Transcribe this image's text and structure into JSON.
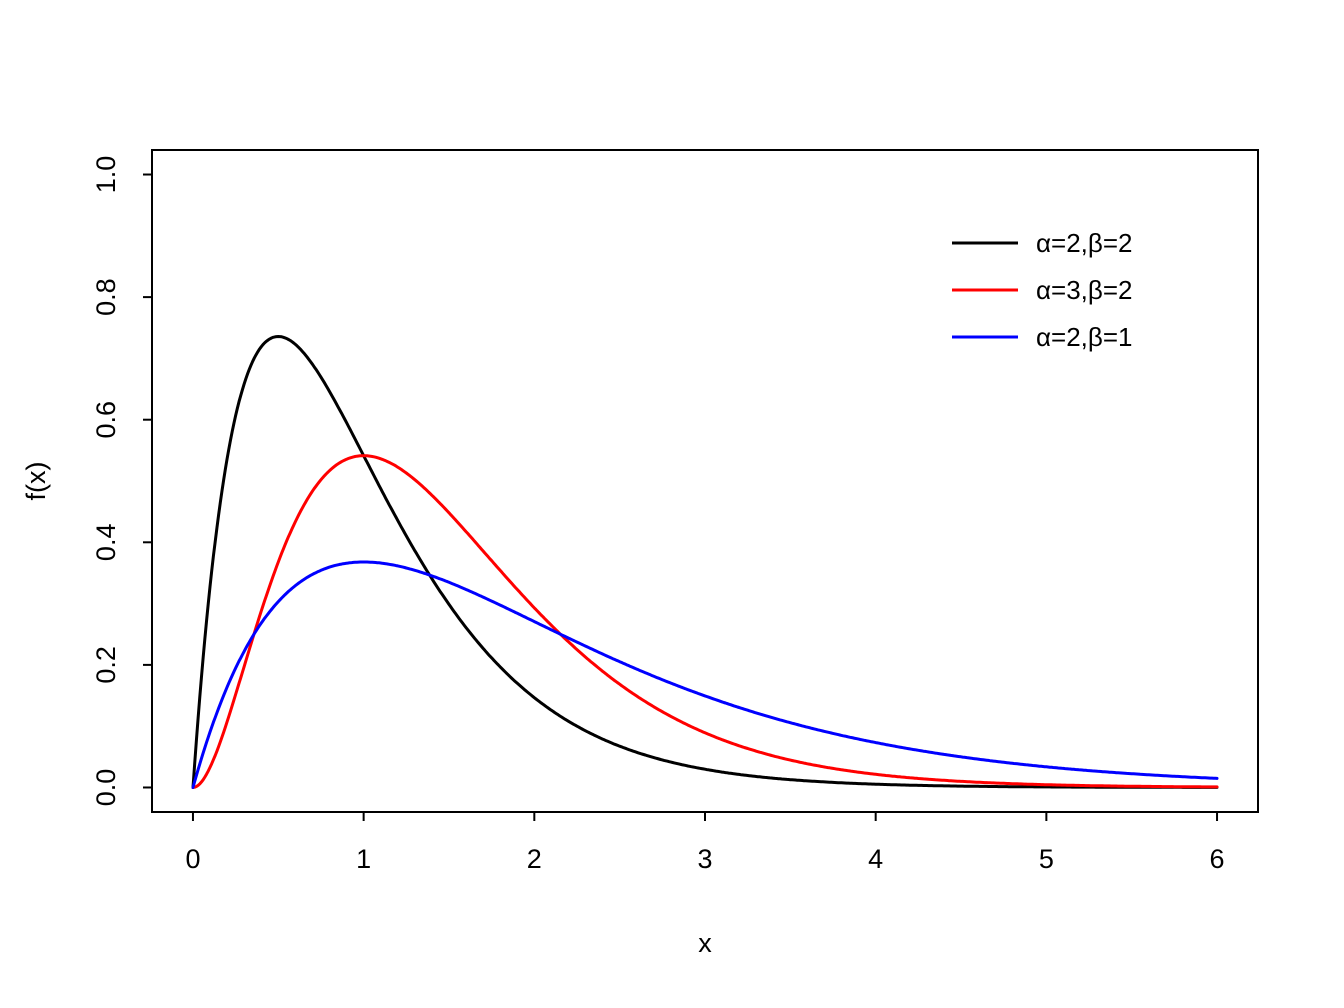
{
  "chart_data": {
    "type": "line",
    "title": "",
    "xlabel": "x",
    "ylabel": "f(x)",
    "xlim": [
      0,
      6
    ],
    "ylim": [
      0.0,
      1.0
    ],
    "grid": false,
    "background_color": "#FFFFFF",
    "box_color": "#000000",
    "x_ticks": {
      "values": [
        0,
        1,
        2,
        3,
        4,
        5,
        6
      ],
      "labels": [
        "0",
        "1",
        "2",
        "3",
        "4",
        "5",
        "6"
      ]
    },
    "y_ticks": {
      "values": [
        0.0,
        0.2,
        0.4,
        0.6,
        0.8,
        1.0
      ],
      "labels": [
        "0.0",
        "0.2",
        "0.4",
        "0.6",
        "0.8",
        "1.0"
      ]
    },
    "sample_x": [
      0,
      0.5,
      1,
      1.5,
      2,
      2.5,
      3,
      3.5,
      4,
      4.5,
      5,
      5.5,
      6
    ],
    "series": [
      {
        "name": "α=2,β=2",
        "color": "#000000",
        "curve": "gamma_pdf",
        "shape_alpha": 2,
        "rate_beta": 2,
        "peak_point": {
          "x": 0.5,
          "y": 0.7358
        },
        "sample_y": [
          0,
          0.7358,
          0.5413,
          0.2987,
          0.1465,
          0.0674,
          0.0297,
          0.0128,
          0.0054,
          0.0022,
          0.0009,
          0.0004,
          0.0001
        ]
      },
      {
        "name": "α=3,β=2",
        "color": "#FF0000",
        "curve": "gamma_pdf",
        "shape_alpha": 3,
        "rate_beta": 2,
        "peak_point": {
          "x": 1.0,
          "y": 0.5413
        },
        "sample_y": [
          0,
          0.3679,
          0.5413,
          0.4481,
          0.2931,
          0.1684,
          0.0892,
          0.0447,
          0.0215,
          0.01,
          0.0045,
          0.002,
          0.0009
        ]
      },
      {
        "name": "α=2,β=1",
        "color": "#0000FF",
        "curve": "gamma_pdf",
        "shape_alpha": 2,
        "rate_beta": 1,
        "peak_point": {
          "x": 1.0,
          "y": 0.3679
        },
        "sample_y": [
          0,
          0.3033,
          0.3679,
          0.3347,
          0.2707,
          0.2052,
          0.1494,
          0.1057,
          0.0733,
          0.05,
          0.0337,
          0.0225,
          0.0149
        ]
      }
    ],
    "legend": {
      "position": "top-right",
      "border": false,
      "entries": [
        "α=2,β=2",
        "α=3,β=2",
        "α=2,β=1"
      ]
    }
  }
}
